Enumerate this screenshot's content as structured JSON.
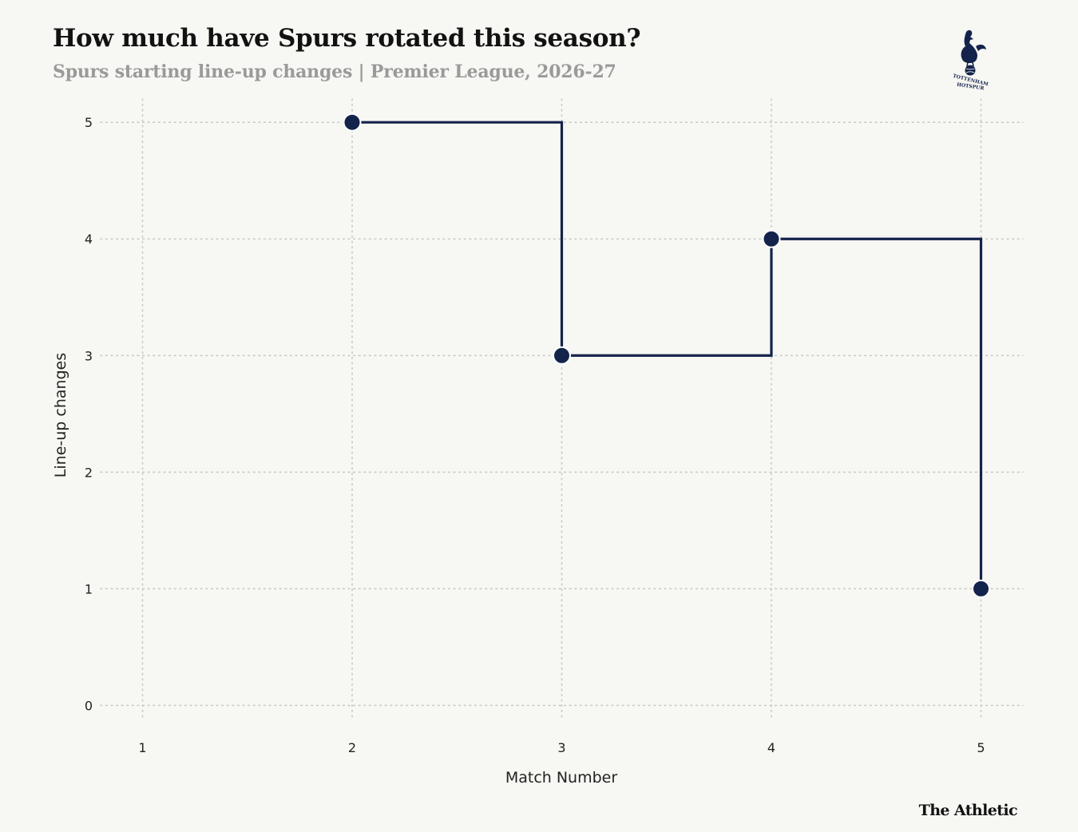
{
  "header": {
    "title": "How much have Spurs rotated this season?",
    "subtitle": "Spurs starting line-up changes | Premier League, 2026-27"
  },
  "logo": {
    "icon": "cockerel-crest-icon",
    "text_top": "TOTTENHAM",
    "text_bottom": "HOTSPUR"
  },
  "footer": {
    "brand": "The Athletic"
  },
  "colors": {
    "line": "#14234b",
    "grid": "#c8c8c4",
    "background": "#f7f7f3",
    "marker_stroke": "#ffffff"
  },
  "chart_data": {
    "type": "line",
    "line_shape": "step-after",
    "x": [
      2,
      3,
      4,
      5
    ],
    "y": [
      5,
      3,
      4,
      1
    ],
    "xlabel": "Match Number",
    "ylabel": "Line-up changes",
    "xlim": [
      0.8,
      5.2
    ],
    "ylim": [
      -0.1,
      5.2
    ],
    "xticks": [
      1,
      2,
      3,
      4,
      5
    ],
    "yticks": [
      0,
      1,
      2,
      3,
      4,
      5
    ],
    "grid": "dotted"
  }
}
